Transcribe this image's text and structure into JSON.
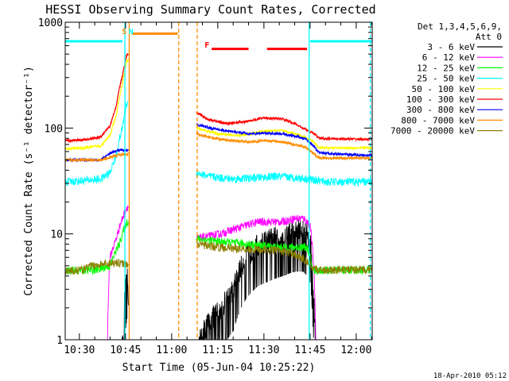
{
  "chart_data": {
    "type": "line",
    "title": "HESSI Observing Summary Count Rates, Corrected",
    "xlabel": "Start Time (05-Jun-04 10:25:22)",
    "ylabel": "Corrected Count Rate (s⁻¹ detector⁻¹)",
    "yscale": "log",
    "ylim": [
      1,
      1000
    ],
    "xlim_minutes": [
      25.4,
      125.2
    ],
    "xticks": [
      {
        "m": 30,
        "label": "10:30"
      },
      {
        "m": 45,
        "label": "10:45"
      },
      {
        "m": 60,
        "label": "11:00"
      },
      {
        "m": 75,
        "label": "11:15"
      },
      {
        "m": 90,
        "label": "11:30"
      },
      {
        "m": 105,
        "label": "11:45"
      },
      {
        "m": 120,
        "label": "12:00"
      }
    ],
    "yticks": [
      {
        "v": 1,
        "label": "1"
      },
      {
        "v": 10,
        "label": "10"
      },
      {
        "v": 100,
        "label": "100"
      },
      {
        "v": 1000,
        "label": "1000"
      }
    ],
    "legend_header": [
      "Det 1,3,4,5,6,9,",
      "Att 0"
    ],
    "legend_position": "right",
    "footer": "18-Apr-2010 05:12",
    "series": [
      {
        "name": "3 - 6 keV",
        "color": "#000000",
        "style": "noisy",
        "points": [
          [
            25.4,
            0
          ],
          [
            43.5,
            0
          ],
          [
            44.5,
            2
          ],
          [
            45.5,
            4
          ],
          [
            46.5,
            0
          ],
          [
            68,
            0
          ],
          [
            69,
            1
          ],
          [
            72,
            1.5
          ],
          [
            76,
            2
          ],
          [
            80,
            3
          ],
          [
            84,
            6
          ],
          [
            88,
            8
          ],
          [
            92,
            9
          ],
          [
            96,
            10
          ],
          [
            100,
            11
          ],
          [
            103,
            11
          ],
          [
            105,
            9
          ],
          [
            106,
            3
          ],
          [
            107,
            0
          ],
          [
            125.2,
            0
          ]
        ]
      },
      {
        "name": "6 - 12 keV",
        "color": "#ff00ff",
        "style": "noisy",
        "points": [
          [
            25.4,
            0
          ],
          [
            39,
            0
          ],
          [
            40,
            6
          ],
          [
            42,
            9
          ],
          [
            44,
            14
          ],
          [
            45.5,
            18
          ],
          [
            68,
            9
          ],
          [
            72,
            9.5
          ],
          [
            76,
            10
          ],
          [
            80,
            11
          ],
          [
            84,
            12
          ],
          [
            88,
            13
          ],
          [
            92,
            13
          ],
          [
            96,
            13
          ],
          [
            100,
            14
          ],
          [
            103,
            14
          ],
          [
            105,
            12
          ],
          [
            107,
            0
          ],
          [
            125.2,
            0
          ]
        ]
      },
      {
        "name": "12 - 25 keV",
        "color": "#00ff00",
        "style": "noisy",
        "points": [
          [
            25.4,
            4.5
          ],
          [
            36,
            4.6
          ],
          [
            40,
            5
          ],
          [
            43,
            8
          ],
          [
            45,
            12
          ],
          [
            45.5,
            13
          ],
          [
            68,
            9
          ],
          [
            75,
            8.5
          ],
          [
            85,
            8
          ],
          [
            95,
            7.5
          ],
          [
            100,
            7.5
          ],
          [
            104,
            7.5
          ],
          [
            106,
            4.5
          ],
          [
            125.2,
            4.6
          ]
        ]
      },
      {
        "name": "25 - 50 keV",
        "color": "#00ffff",
        "style": "noisy",
        "points": [
          [
            25.4,
            31
          ],
          [
            32,
            32
          ],
          [
            37,
            33
          ],
          [
            40,
            38
          ],
          [
            42,
            55
          ],
          [
            44,
            100
          ],
          [
            45.5,
            175
          ],
          [
            68,
            38
          ],
          [
            72,
            35
          ],
          [
            80,
            33
          ],
          [
            88,
            34
          ],
          [
            94,
            35
          ],
          [
            100,
            34
          ],
          [
            105,
            33
          ],
          [
            110,
            31
          ],
          [
            125.2,
            31
          ]
        ]
      },
      {
        "name": "50 - 100 keV",
        "color": "#ffff00",
        "style": "smooth",
        "points": [
          [
            25.4,
            64
          ],
          [
            32,
            65
          ],
          [
            37,
            68
          ],
          [
            40,
            85
          ],
          [
            42,
            130
          ],
          [
            44,
            260
          ],
          [
            45.5,
            440
          ],
          [
            68,
            100
          ],
          [
            75,
            88
          ],
          [
            82,
            85
          ],
          [
            90,
            93
          ],
          [
            96,
            95
          ],
          [
            100,
            88
          ],
          [
            104,
            80
          ],
          [
            106,
            75
          ],
          [
            108,
            65
          ],
          [
            125.2,
            65
          ]
        ]
      },
      {
        "name": "100 - 300 keV",
        "color": "#ff0000",
        "style": "smooth",
        "points": [
          [
            25.4,
            76
          ],
          [
            32,
            78
          ],
          [
            37,
            82
          ],
          [
            40,
            105
          ],
          [
            42,
            160
          ],
          [
            44,
            310
          ],
          [
            45.5,
            500
          ],
          [
            68,
            140
          ],
          [
            72,
            120
          ],
          [
            78,
            110
          ],
          [
            84,
            115
          ],
          [
            90,
            125
          ],
          [
            96,
            122
          ],
          [
            100,
            110
          ],
          [
            104,
            95
          ],
          [
            106,
            90
          ],
          [
            108,
            80
          ],
          [
            125.2,
            78
          ]
        ]
      },
      {
        "name": "300 - 800 keV",
        "color": "#0000ff",
        "style": "smooth",
        "points": [
          [
            25.4,
            50
          ],
          [
            37,
            50
          ],
          [
            40,
            58
          ],
          [
            43,
            62
          ],
          [
            45.5,
            62
          ],
          [
            68,
            108
          ],
          [
            74,
            98
          ],
          [
            80,
            92
          ],
          [
            86,
            88
          ],
          [
            90,
            90
          ],
          [
            96,
            88
          ],
          [
            100,
            84
          ],
          [
            104,
            78
          ],
          [
            106,
            68
          ],
          [
            108,
            58
          ],
          [
            125.2,
            55
          ]
        ]
      },
      {
        "name": "800 - 7000 keV",
        "color": "#ff8c00",
        "style": "smooth",
        "points": [
          [
            25.4,
            50
          ],
          [
            37,
            50
          ],
          [
            40,
            53
          ],
          [
            43,
            56
          ],
          [
            45.5,
            56
          ],
          [
            68,
            88
          ],
          [
            74,
            80
          ],
          [
            80,
            76
          ],
          [
            86,
            74
          ],
          [
            90,
            76
          ],
          [
            96,
            74
          ],
          [
            100,
            70
          ],
          [
            104,
            65
          ],
          [
            106,
            58
          ],
          [
            108,
            52
          ],
          [
            125.2,
            52
          ]
        ]
      },
      {
        "name": "7000 - 20000 keV",
        "color": "#8b8000",
        "style": "noisy",
        "points": [
          [
            25.4,
            4.5
          ],
          [
            30,
            4.5
          ],
          [
            34,
            5
          ],
          [
            38,
            5.2
          ],
          [
            42,
            5.4
          ],
          [
            45.5,
            5.2
          ],
          [
            68,
            8
          ],
          [
            75,
            7.5
          ],
          [
            85,
            7.2
          ],
          [
            95,
            7
          ],
          [
            100,
            6.5
          ],
          [
            104,
            5.5
          ],
          [
            106,
            4.6
          ],
          [
            125.2,
            4.6
          ]
        ]
      }
    ],
    "annotations": [
      {
        "text": "S",
        "m": 44.6,
        "color": "#ff8c00"
      },
      {
        "text": "N",
        "m": 46.8,
        "color": "#00ffff"
      },
      {
        "text": "F",
        "m": 71.5,
        "color": "#ff0000"
      }
    ],
    "state_bars": [
      {
        "name": "orange-bar",
        "color": "#ff8c00",
        "m0": 47,
        "m1": 62,
        "v": 780
      },
      {
        "name": "flare-bar-1",
        "color": "#ff0000",
        "m0": 73,
        "m1": 85,
        "v": 560
      },
      {
        "name": "flare-bar-2",
        "color": "#ff0000",
        "m0": 91,
        "m1": 104,
        "v": 560
      },
      {
        "name": "cyan-bar-left",
        "color": "#00ffff",
        "m0": 25.4,
        "m1": 44,
        "v": 660
      },
      {
        "name": "cyan-bar-right",
        "color": "#00ffff",
        "m0": 105,
        "m1": 125.2,
        "v": 660
      }
    ],
    "vlines": [
      {
        "name": "cyan-vline-1",
        "color": "#00ffff",
        "m": 44.8,
        "dash": false
      },
      {
        "name": "orange-vline-1",
        "color": "#ff8c00",
        "m": 46.2,
        "dash": false
      },
      {
        "name": "orange-vline-2",
        "color": "#ff8c00",
        "m": 62.3,
        "dash": true
      },
      {
        "name": "orange-vline-3",
        "color": "#ff8c00",
        "m": 68.3,
        "dash": true
      },
      {
        "name": "cyan-vline-2",
        "color": "#00ffff",
        "m": 104.7,
        "dash": false
      },
      {
        "name": "cyan-vline-3",
        "color": "#00ffff",
        "m": 124.6,
        "dash": true
      }
    ]
  }
}
